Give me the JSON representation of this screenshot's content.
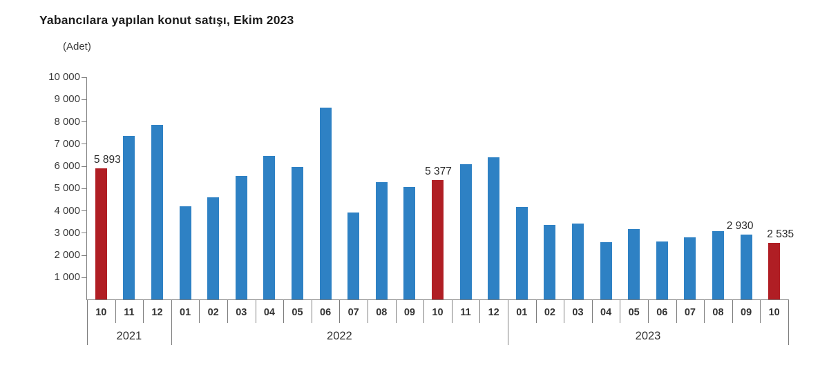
{
  "title": "Yabancılara yapılan konut satışı, Ekim 2023",
  "unit_label": "(Adet)",
  "colors": {
    "bar_default": "#2E81C4",
    "bar_highlight": "#B01E24",
    "axis": "#7d7d7d",
    "tick_text": "#3a3a3a",
    "title_text": "#1c1c1c"
  },
  "chart_data": {
    "type": "bar",
    "title": "Yabancılara yapılan konut satışı, Ekim 2023",
    "ylabel": "(Adet)",
    "xlabel": "",
    "ylim": [
      0,
      10000
    ],
    "ytick_interval": 1000,
    "ytick_labels": [
      "10 000",
      "9 000",
      "8 000",
      "7 000",
      "6 000",
      "5 000",
      "4 000",
      "3 000",
      "2 000",
      "1 000"
    ],
    "grid": false,
    "legend": "none",
    "groups": [
      {
        "year": "2021",
        "months": [
          "10",
          "11",
          "12"
        ],
        "values": [
          5893,
          7363,
          7841
        ]
      },
      {
        "year": "2022",
        "months": [
          "01",
          "02",
          "03",
          "04",
          "05",
          "06",
          "07",
          "08",
          "09",
          "10",
          "11",
          "12"
        ],
        "values": [
          4186,
          4591,
          5567,
          6447,
          5962,
          8630,
          3900,
          5273,
          5058,
          5377,
          6083,
          6386
        ]
      },
      {
        "year": "2023",
        "months": [
          "01",
          "02",
          "03",
          "04",
          "05",
          "06",
          "07",
          "08",
          "09",
          "10"
        ],
        "values": [
          4156,
          3350,
          3405,
          2574,
          3179,
          2609,
          2801,
          3058,
          2930,
          2535
        ]
      }
    ],
    "highlighted_bars": [
      "2021-10",
      "2022-10",
      "2023-10"
    ],
    "annotations": [
      {
        "year": "2021",
        "month": "10",
        "label": "5 893"
      },
      {
        "year": "2022",
        "month": "10",
        "label": "5 377"
      },
      {
        "year": "2023",
        "month": "09",
        "label": "2 930"
      },
      {
        "year": "2023",
        "month": "10",
        "label": "2 535"
      }
    ]
  }
}
